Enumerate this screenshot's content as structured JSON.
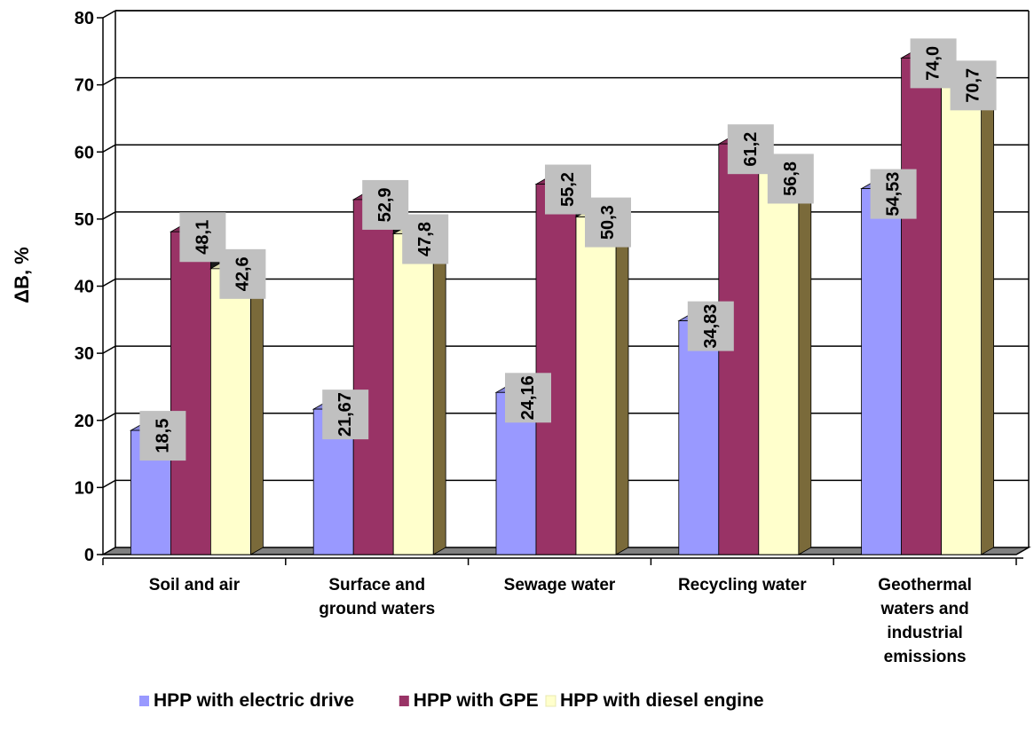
{
  "chart_data": {
    "type": "bar",
    "title": "",
    "xlabel": "",
    "ylabel": "ΔB, %",
    "ylim": [
      0,
      80
    ],
    "yticks": [
      "0",
      "10",
      "20",
      "30",
      "40",
      "50",
      "60",
      "70",
      "80"
    ],
    "grid": true,
    "legend_position": "bottom",
    "categories": [
      "Soil and air",
      "Surface and ground waters",
      "Sewage water",
      "Recycling water",
      "Geothermal waters and industrial emissions"
    ],
    "series": [
      {
        "name": "HPP with electric drive",
        "color": "#9999ff",
        "values": [
          18.5,
          21.67,
          24.16,
          34.83,
          54.53
        ],
        "labels": [
          "18,5",
          "21,67",
          "24,16",
          "34,83",
          "54,53"
        ]
      },
      {
        "name": "HPP with GPE",
        "color": "#993366",
        "values": [
          48.1,
          52.9,
          55.2,
          61.2,
          74.0
        ],
        "labels": [
          "48,1",
          "52,9",
          "55,2",
          "61,2",
          "74,0"
        ]
      },
      {
        "name": "HPP with diesel engine",
        "color": "#ffffcc",
        "values": [
          42.6,
          47.8,
          50.3,
          56.8,
          70.7
        ],
        "labels": [
          "42,6",
          "47,8",
          "50,3",
          "56,8",
          "70,7"
        ]
      }
    ]
  }
}
